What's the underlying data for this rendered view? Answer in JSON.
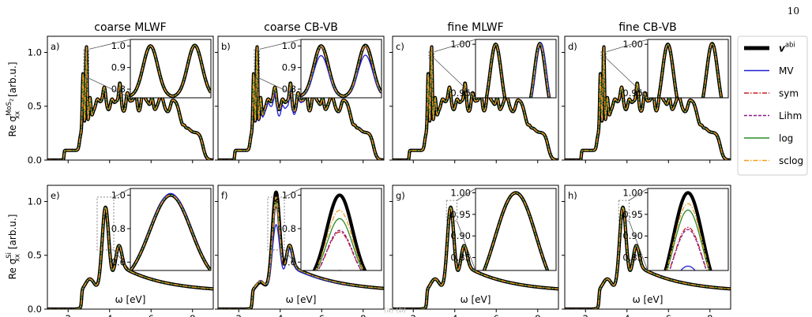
{
  "page_number": "10",
  "caption": "(a) (b)",
  "chart_data": {
    "type": "line",
    "column_titles": [
      "coarse MLWF",
      "coarse CB-VB",
      "fine MLWF",
      "fine CB-VB"
    ],
    "xlabel": "ω [eV]",
    "ylabels": {
      "top": {
        "prefix": "Re σ",
        "sup": "MoS",
        "sup_sub": "2",
        "sub": "xx",
        "suffix": " [arb.u.]"
      },
      "bottom": {
        "prefix": "Re σ",
        "sup": "Si",
        "sub": "xx",
        "suffix": " [arb.u.]"
      }
    },
    "xlim": [
      1,
      9
    ],
    "ylim": [
      0,
      1.15
    ],
    "xticks": [
      "2",
      "4",
      "6",
      "8"
    ],
    "yticks": [
      "0.0",
      "0.5",
      "1.0"
    ],
    "legend": {
      "position": "right",
      "entries": [
        {
          "label": "v",
          "sup": "abi",
          "color": "#000000",
          "style": "thick"
        },
        {
          "label": "MV",
          "color": "#1f1fd6",
          "style": "solid"
        },
        {
          "label": "sym",
          "color": "#c81e1e",
          "style": "dashdot"
        },
        {
          "label": "Lihm",
          "color": "#8a1a8a",
          "style": "dashed"
        },
        {
          "label": "log",
          "color": "#2a8a2a",
          "style": "solid"
        },
        {
          "label": "sclog",
          "color": "#f0a020",
          "style": "dashdot"
        }
      ]
    },
    "panels": [
      {
        "label": "a)",
        "material": "MoS2",
        "method": "coarse MLWF",
        "inset": {
          "xrange": [
            2.75,
            3.0
          ],
          "yrange": [
            0.76,
            1.03
          ],
          "yticks": [
            "1.0",
            "0.9",
            "0.8"
          ]
        }
      },
      {
        "label": "b)",
        "material": "MoS2",
        "method": "coarse CB-VB",
        "inset": {
          "xrange": [
            2.75,
            3.0
          ],
          "yrange": [
            0.76,
            1.03
          ],
          "yticks": [
            "1.0",
            "0.9",
            "0.8"
          ]
        }
      },
      {
        "label": "c)",
        "material": "MoS2",
        "method": "fine MLWF",
        "inset": {
          "xrange": [
            2.75,
            3.0
          ],
          "yrange": [
            0.945,
            1.005
          ],
          "yticks": [
            "1.00",
            "0.95"
          ]
        }
      },
      {
        "label": "d)",
        "material": "MoS2",
        "method": "fine CB-VB",
        "inset": {
          "xrange": [
            2.75,
            3.0
          ],
          "yrange": [
            0.945,
            1.005
          ],
          "yticks": [
            "1.00",
            "0.95"
          ]
        }
      },
      {
        "label": "e)",
        "material": "Si",
        "method": "coarse MLWF",
        "inset": {
          "xrange": [
            3.4,
            4.2
          ],
          "yrange": [
            0.55,
            1.04
          ],
          "yticks": [
            "1.0",
            "0.8",
            "0.6"
          ]
        }
      },
      {
        "label": "f)",
        "material": "Si",
        "method": "coarse CB-VB",
        "inset": {
          "xrange": [
            3.4,
            4.2
          ],
          "yrange": [
            0.55,
            1.04
          ],
          "yticks": [
            "1.0",
            "0.8",
            "0.6"
          ]
        }
      },
      {
        "label": "g)",
        "material": "Si",
        "method": "fine MLWF",
        "inset": {
          "xrange": [
            3.6,
            4.1
          ],
          "yrange": [
            0.82,
            1.01
          ],
          "yticks": [
            "1.00",
            "0.95",
            "0.90",
            "0.85"
          ]
        }
      },
      {
        "label": "h)",
        "material": "Si",
        "method": "fine CB-VB",
        "inset": {
          "xrange": [
            3.6,
            4.1
          ],
          "yrange": [
            0.82,
            1.01
          ],
          "yticks": [
            "1.00",
            "0.95",
            "0.90",
            "0.85"
          ]
        }
      }
    ]
  }
}
